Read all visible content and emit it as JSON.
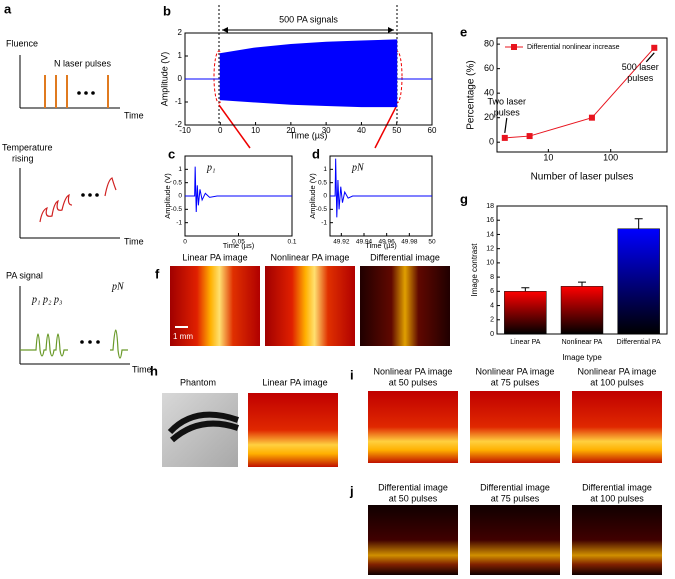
{
  "panel_labels": [
    "a",
    "b",
    "c",
    "d",
    "e",
    "f",
    "g",
    "h",
    "i",
    "j"
  ],
  "panel_a": {
    "fluence_axis": "Fluence",
    "pulses_label": "N laser pulses",
    "temperature_axis": [
      "Temperature",
      "rising"
    ],
    "signal_axis": "PA signal",
    "time_axes": [
      "Time",
      "Time",
      "Time"
    ],
    "pulse_labels": [
      "p₁",
      "p₂",
      "p₃",
      "pN"
    ]
  },
  "panel_f": {
    "titles": [
      "Linear PA image",
      "Nonlinear PA image",
      "Differential image"
    ],
    "scale_bar": "1 mm"
  },
  "panel_h": {
    "titles": [
      "Phantom",
      "Linear PA image"
    ]
  },
  "panel_i": {
    "titles": [
      [
        "Nonlinear PA image",
        "at 50 pulses"
      ],
      [
        "Nonlinear PA image",
        "at 75 pulses"
      ],
      [
        "Nonlinear PA image",
        "at 100 pulses"
      ]
    ]
  },
  "panel_j": {
    "titles": [
      [
        "Differential image",
        "at 50 pulses"
      ],
      [
        "Differential image",
        "at 75 pulses"
      ],
      [
        "Differential image",
        "at 100 pulses"
      ]
    ]
  },
  "chart_data": [
    {
      "type": "area",
      "annotation": "500 PA signals",
      "xlabel": "Time (µs)",
      "ylabel": "Amplitude (V)",
      "x": [
        0,
        10,
        20,
        30,
        40,
        50
      ],
      "series": [
        {
          "color": "#0000ff",
          "values": [
            1.1,
            1.35,
            1.5,
            1.6,
            1.65,
            1.7
          ]
        },
        {
          "color": "#0000ff",
          "values": [
            -0.9,
            -1.0,
            -1.1,
            -1.15,
            -1.2,
            -1.2
          ]
        }
      ],
      "xlim": [
        -10,
        60
      ],
      "xticks": [
        -10,
        0,
        10,
        20,
        30,
        40,
        50,
        60
      ],
      "ylim": [
        -2,
        2
      ],
      "yticks": [
        -2,
        -1,
        0,
        1,
        2
      ]
    },
    {
      "type": "line",
      "annotation": "p₁",
      "xlabel": "Time (µs)",
      "ylabel": "Amplitude (V)",
      "x": [
        0,
        0.009,
        0.0095,
        0.0105,
        0.0115,
        0.0125,
        0.014,
        0.016,
        0.019,
        0.023,
        0.03,
        0.1
      ],
      "series": [
        {
          "color": "#0000ff",
          "values": [
            0,
            0,
            1.1,
            -0.6,
            0.4,
            -0.35,
            0.25,
            -0.15,
            0.1,
            -0.05,
            0,
            0
          ]
        }
      ],
      "xlim": [
        0,
        0.1
      ],
      "xticks": [
        0,
        0.05,
        0.1
      ],
      "ylim": [
        -1.5,
        1.5
      ],
      "yticks": [
        -1,
        -0.5,
        0,
        0.5,
        1
      ]
    },
    {
      "type": "line",
      "annotation": "pN",
      "xlabel": "Time (µs)",
      "ylabel": "Amplitude (V)",
      "x": [
        49.91,
        49.9145,
        49.915,
        49.916,
        49.917,
        49.918,
        49.9195,
        49.921,
        49.923,
        49.926,
        49.93,
        50
      ],
      "series": [
        {
          "color": "#0000ff",
          "values": [
            0,
            0,
            1.4,
            -0.8,
            0.6,
            -0.5,
            0.35,
            -0.25,
            0.15,
            -0.08,
            0,
            0
          ]
        }
      ],
      "xlim": [
        49.91,
        50
      ],
      "xticks": [
        49.92,
        49.94,
        49.96,
        49.98,
        50
      ],
      "ylim": [
        -1.5,
        1.5
      ],
      "yticks": [
        -1,
        -0.5,
        0,
        0.5,
        1
      ]
    },
    {
      "type": "line",
      "log_x": true,
      "legend": "upper left",
      "xlabel": "Number of laser pulses",
      "ylabel": "Percentage (%)",
      "annotations": [
        [
          "Two laser",
          "pulses"
        ],
        [
          "500 laser",
          "pulses"
        ]
      ],
      "x": [
        2,
        5,
        50,
        500
      ],
      "series": [
        {
          "name": "Differential nonlinear increase",
          "color": "#e8141e",
          "values": [
            3.5,
            5,
            20,
            77
          ]
        }
      ],
      "xlim": [
        1.5,
        800
      ],
      "xticks": [
        10,
        100
      ],
      "ylim": [
        -8,
        85
      ],
      "yticks": [
        0,
        20,
        40,
        60,
        80
      ]
    },
    {
      "type": "bar",
      "xlabel": "Image type",
      "ylabel": "Image contrast",
      "categories": [
        "Linear PA",
        "Nonlinear PA",
        "Differential PA"
      ],
      "values": [
        6,
        6.7,
        14.8
      ],
      "errors": [
        0.5,
        0.6,
        1.4
      ],
      "colors": [
        "#ff0000",
        "#ff0000",
        "#0000ff"
      ],
      "ylim": [
        0,
        18
      ],
      "yticks": [
        0,
        2,
        4,
        6,
        8,
        10,
        12,
        14,
        16,
        18
      ]
    }
  ]
}
